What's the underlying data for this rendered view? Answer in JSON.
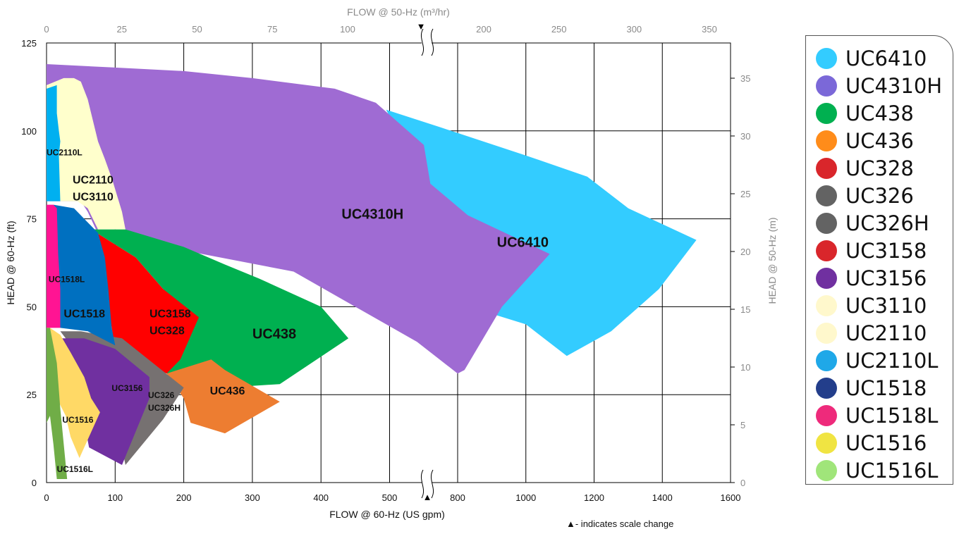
{
  "chart_data": {
    "type": "area",
    "xlabel": "FLOW @ 60-Hz (US gpm)",
    "ylabel": "HEAD @ 60-Hz (ft)",
    "x2label": "FLOW @ 50-Hz (m³/hr)",
    "y2label": "HEAD @ 50-Hz (m)",
    "note": "▲- indicates scale change",
    "scale_change_marker": "▲",
    "x_ticks": [
      "0",
      "100",
      "200",
      "300",
      "400",
      "500",
      "800",
      "1000",
      "1200",
      "1400",
      "1600"
    ],
    "x_tick_values": [
      0,
      100,
      200,
      300,
      400,
      500,
      800,
      1000,
      1200,
      1400,
      1600
    ],
    "x_break": [
      550,
      700
    ],
    "x2_ticks": [
      "0",
      "25",
      "50",
      "75",
      "100",
      "200",
      "250",
      "300",
      "350"
    ],
    "x2_tick_values": [
      0,
      25,
      50,
      75,
      100,
      200,
      250,
      300,
      350
    ],
    "y_ticks": [
      "0",
      "25",
      "50",
      "75",
      "100",
      "125"
    ],
    "y_tick_values": [
      0,
      25,
      50,
      75,
      100,
      125
    ],
    "ylim": [
      0,
      125
    ],
    "y2_ticks": [
      "0",
      "5",
      "10",
      "15",
      "20",
      "25",
      "30",
      "35"
    ],
    "y2_tick_values": [
      0,
      5,
      10,
      15,
      20,
      25,
      30,
      35
    ],
    "grid": true,
    "legend_position": "right",
    "legend": [
      {
        "name": "UC6410",
        "color": "#33ccff"
      },
      {
        "name": "UC4310H",
        "color": "#7b68d8"
      },
      {
        "name": "UC438",
        "color": "#00b050"
      },
      {
        "name": "UC436",
        "color": "#ff8c1a"
      },
      {
        "name": "UC328",
        "color": "#d9262b"
      },
      {
        "name": "UC326",
        "color": "#636363"
      },
      {
        "name": "UC326H",
        "color": "#636363"
      },
      {
        "name": "UC3158",
        "color": "#d9262b"
      },
      {
        "name": "UC3156",
        "color": "#7030a0"
      },
      {
        "name": "UC3110",
        "color": "#fff8cc"
      },
      {
        "name": "UC2110",
        "color": "#fff8cc"
      },
      {
        "name": "UC2110L",
        "color": "#1fa8e8"
      },
      {
        "name": "UC1518",
        "color": "#233e8b"
      },
      {
        "name": "UC1518L",
        "color": "#ee2a7b"
      },
      {
        "name": "UC1516",
        "color": "#f0e442"
      },
      {
        "name": "UC1516L",
        "color": "#a0e57a"
      }
    ],
    "regions": [
      {
        "label": "UC6410",
        "color": "#33ccff",
        "label_at": [
          915,
          67
        ],
        "polygon": [
          [
            495,
            106
          ],
          [
            750,
            101
          ],
          [
            1000,
            93
          ],
          [
            1180,
            87
          ],
          [
            1300,
            78
          ],
          [
            1500,
            69
          ],
          [
            1390,
            55
          ],
          [
            1250,
            43
          ],
          [
            1120,
            36
          ],
          [
            1000,
            45
          ],
          [
            900,
            48
          ]
        ]
      },
      {
        "label": "UC4310H",
        "color": "#9f6bd3",
        "label_at": [
          430,
          75
        ],
        "polygon": [
          [
            0,
            119
          ],
          [
            100,
            118
          ],
          [
            200,
            117
          ],
          [
            300,
            115
          ],
          [
            420,
            112
          ],
          [
            480,
            108
          ],
          [
            550,
            96
          ],
          [
            720,
            85
          ],
          [
            830,
            76
          ],
          [
            1070,
            65
          ],
          [
            930,
            50
          ],
          [
            820,
            32
          ],
          [
            800,
            31
          ],
          [
            540,
            40
          ],
          [
            360,
            60
          ],
          [
            200,
            66
          ],
          [
            115,
            72
          ],
          [
            72,
            72
          ],
          [
            60,
            77
          ],
          [
            50,
            80
          ],
          [
            0,
            80
          ]
        ]
      },
      {
        "label": "UC438",
        "color": "#00b050",
        "label_at": [
          300,
          41
        ],
        "polygon": [
          [
            65,
            72
          ],
          [
            115,
            72
          ],
          [
            200,
            67
          ],
          [
            260,
            62
          ],
          [
            310,
            58
          ],
          [
            400,
            50
          ],
          [
            440,
            41
          ],
          [
            340,
            28
          ],
          [
            260,
            27
          ],
          [
            240,
            30
          ],
          [
            175,
            31
          ],
          [
            210,
            45
          ],
          [
            170,
            55
          ],
          [
            130,
            64
          ]
        ]
      },
      {
        "label": "UC436",
        "color": "#ed7d31",
        "label_at": [
          238,
          25
        ],
        "polygon": [
          [
            175,
            31
          ],
          [
            240,
            35
          ],
          [
            260,
            32
          ],
          [
            340,
            23
          ],
          [
            260,
            14
          ],
          [
            210,
            17
          ],
          [
            200,
            24
          ]
        ]
      },
      {
        "label": "UC3158\nUC328",
        "color": "#ff0000",
        "label_at": [
          150,
          47
        ],
        "polygon": [
          [
            65,
            72
          ],
          [
            130,
            64
          ],
          [
            170,
            55
          ],
          [
            222,
            47
          ],
          [
            195,
            35
          ],
          [
            175,
            31
          ],
          [
            100,
            38
          ],
          [
            90,
            50
          ],
          [
            80,
            60
          ]
        ]
      },
      {
        "label": "UC326\nUC326H",
        "color": "#767171",
        "label_at": [
          148,
          24
        ],
        "polygon": [
          [
            20,
            43
          ],
          [
            50,
            43
          ],
          [
            110,
            41
          ],
          [
            200,
            27
          ],
          [
            170,
            18
          ],
          [
            115,
            5
          ],
          [
            95,
            24
          ]
        ]
      },
      {
        "label": "UC3156",
        "color": "#7030a0",
        "label_at": [
          95,
          26
        ],
        "polygon": [
          [
            20,
            41
          ],
          [
            55,
            41
          ],
          [
            100,
            38
          ],
          [
            150,
            30
          ],
          [
            150,
            24
          ],
          [
            110,
            5
          ],
          [
            62,
            10
          ],
          [
            55,
            17
          ]
        ]
      },
      {
        "label": "UC1518",
        "color": "#0070c0",
        "label_at": [
          25,
          47
        ],
        "polygon": [
          [
            10,
            79
          ],
          [
            40,
            78
          ],
          [
            55,
            75
          ],
          [
            75,
            71
          ],
          [
            85,
            64
          ],
          [
            90,
            55
          ],
          [
            95,
            44
          ],
          [
            100,
            39
          ],
          [
            60,
            43
          ],
          [
            20,
            44
          ]
        ]
      },
      {
        "label": "UC1518L",
        "color": "#ff1493",
        "label_at": [
          3,
          57
        ],
        "polygon": [
          [
            0,
            79
          ],
          [
            10,
            79
          ],
          [
            15,
            78
          ],
          [
            17,
            65
          ],
          [
            20,
            55
          ],
          [
            20,
            48
          ],
          [
            20,
            44
          ],
          [
            0,
            44
          ]
        ]
      },
      {
        "label": "UC2110\nUC3110",
        "color": "#ffffcc",
        "label_at": [
          38,
          85
        ],
        "polygon": [
          [
            0,
            113
          ],
          [
            25,
            115
          ],
          [
            40,
            115
          ],
          [
            50,
            114
          ],
          [
            60,
            109
          ],
          [
            75,
            97
          ],
          [
            85,
            92
          ],
          [
            96,
            86
          ],
          [
            110,
            77
          ],
          [
            115,
            72
          ],
          [
            75,
            72
          ],
          [
            60,
            78
          ],
          [
            45,
            80
          ],
          [
            10,
            80
          ],
          [
            0,
            80
          ]
        ]
      },
      {
        "label": "UC2110L",
        "color": "#00b0f0",
        "label_at": [
          0,
          93
        ],
        "polygon": [
          [
            0,
            112
          ],
          [
            15,
            113
          ],
          [
            15,
            105
          ],
          [
            18,
            100
          ],
          [
            20,
            97
          ],
          [
            18,
            93
          ],
          [
            20,
            80
          ],
          [
            10,
            80
          ],
          [
            0,
            80
          ]
        ]
      },
      {
        "label": "UC1516",
        "color": "#ffd966",
        "label_at": [
          23,
          17
        ],
        "polygon": [
          [
            0,
            44
          ],
          [
            5,
            44
          ],
          [
            20,
            42
          ],
          [
            35,
            37
          ],
          [
            55,
            30
          ],
          [
            65,
            24
          ],
          [
            78,
            20
          ],
          [
            48,
            7
          ],
          [
            35,
            13
          ],
          [
            28,
            19
          ],
          [
            15,
            24
          ],
          [
            5,
            33
          ],
          [
            0,
            40
          ]
        ]
      },
      {
        "label": "UC1516L",
        "color": "#70ad47",
        "label_at": [
          15,
          3
        ],
        "polygon": [
          [
            0,
            44
          ],
          [
            5,
            44
          ],
          [
            15,
            34
          ],
          [
            20,
            21
          ],
          [
            30,
            1
          ],
          [
            15,
            1
          ],
          [
            10,
            11
          ],
          [
            5,
            19
          ],
          [
            0,
            17
          ]
        ]
      }
    ]
  }
}
